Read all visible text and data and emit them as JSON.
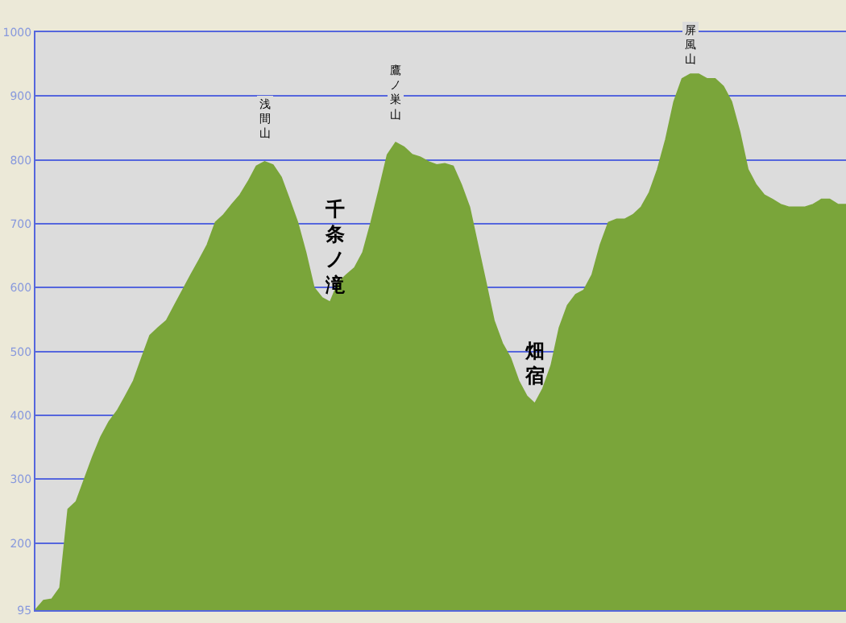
{
  "chart_data": {
    "type": "area",
    "color": "#7aa53a",
    "categories": [
      null,
      null,
      null,
      null,
      null,
      null,
      null,
      null,
      null,
      null,
      null,
      null,
      null,
      null,
      null,
      null,
      null,
      null,
      null,
      null,
      null,
      null,
      null,
      null,
      null,
      null,
      null,
      null,
      null,
      null,
      null,
      null,
      null,
      null,
      null,
      null,
      null,
      null,
      null,
      null,
      null,
      null,
      null,
      null,
      null,
      null,
      null,
      null,
      null,
      null,
      null,
      null,
      null,
      null,
      null,
      null,
      null,
      null,
      null,
      null,
      null,
      null,
      null,
      null,
      null,
      null,
      null,
      null,
      null,
      null,
      null,
      null,
      null,
      null,
      null,
      null,
      null,
      null,
      null,
      null,
      null,
      null,
      null,
      null,
      null,
      null,
      null,
      null,
      null,
      null,
      null,
      null,
      null,
      null,
      null,
      null,
      null,
      null,
      null,
      null
    ],
    "values": [
      95,
      110,
      112,
      130,
      253,
      265,
      300,
      335,
      366,
      390,
      407,
      430,
      454,
      490,
      525,
      537,
      548,
      572,
      596,
      620,
      643,
      667,
      702,
      714,
      730,
      745,
      766,
      790,
      797,
      792,
      773,
      738,
      702,
      655,
      600,
      584,
      577,
      608,
      620,
      631,
      655,
      702,
      754,
      808,
      827,
      820,
      808,
      804,
      797,
      792,
      794,
      790,
      761,
      726,
      667,
      608,
      548,
      513,
      490,
      454,
      430,
      418,
      442,
      478,
      537,
      572,
      589,
      596,
      620,
      667,
      702,
      707,
      707,
      714,
      726,
      749,
      785,
      832,
      891,
      927,
      934,
      934,
      927,
      927,
      915,
      891,
      844,
      785,
      761,
      745,
      738,
      730,
      726,
      726,
      726,
      730,
      738,
      738,
      730,
      730
    ],
    "ylim": [
      95,
      1000
    ],
    "yticks": [
      95,
      200,
      300,
      400,
      500,
      600,
      700,
      800,
      900,
      1000
    ],
    "grid": "y",
    "tick_labels": "y",
    "annotations": [
      {
        "text": "浅間山",
        "y": 797
      },
      {
        "text": "鷹ノ巣山",
        "y": 827
      },
      {
        "text": "屏風山",
        "y": 934
      },
      {
        "text": "千条ノ滝",
        "y": 577
      },
      {
        "text": "畑宿",
        "y": 418
      }
    ]
  }
}
